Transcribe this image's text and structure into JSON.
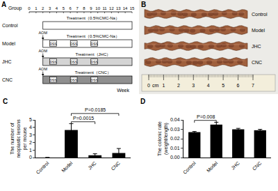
{
  "diagram": {
    "title": "A",
    "header": "Group",
    "axis": {
      "label": "Week",
      "ticks": [
        0,
        1,
        2,
        3,
        4,
        5,
        6,
        7,
        8,
        9,
        10,
        11,
        12,
        13,
        14,
        15
      ]
    },
    "aom_label": "AOM",
    "dss_label": "DSS",
    "rows": [
      {
        "group": "Control",
        "treatment": "Treatment（0.5%CMC-Na）",
        "start": 2,
        "end": 15
      },
      {
        "group": "Model",
        "treatment": "Treatment（0.5%CMC-Na）",
        "start": 2,
        "end": 15,
        "aom_week": 2,
        "dss_weeks": [
          [
            3,
            4
          ],
          [
            6,
            7
          ],
          [
            9,
            10
          ]
        ]
      },
      {
        "group": "JHC",
        "treatment": "Treatment（JHC）",
        "start": 2,
        "end": 15,
        "aom_week": 2,
        "dss_weeks": [
          [
            3,
            4
          ],
          [
            6,
            7
          ],
          [
            9,
            10
          ]
        ]
      },
      {
        "group": "CNC",
        "treatment": "Treatment（CNC）",
        "start": 2,
        "end": 15,
        "aom_week": 2,
        "dss_weeks": [
          [
            3,
            4
          ],
          [
            6,
            7
          ],
          [
            9,
            10
          ]
        ]
      }
    ]
  },
  "photo": {
    "title": "B",
    "labels": [
      "Control",
      "Model",
      "JHC",
      "CNC"
    ],
    "ruler": {
      "unit": "cm",
      "ticks": [
        0,
        1,
        2,
        3,
        4,
        5,
        6,
        7
      ]
    }
  },
  "chart_data": [
    {
      "type": "bar",
      "title": "C",
      "categories": [
        "Control",
        "Model",
        "JHC",
        "CNC"
      ],
      "values": [
        0,
        3.65,
        0.3,
        0.6
      ],
      "errors": [
        0,
        0.85,
        0.2,
        0.6
      ],
      "color": "#000000",
      "y_label": "The number of neoplastic lesions per mouse",
      "ylim": [
        0,
        5
      ],
      "yticks": [
        0,
        1,
        2,
        3,
        4,
        5
      ],
      "annotations": [
        {
          "text": "P=0.0015",
          "from": "Model",
          "to": "JHC"
        },
        {
          "text": "P=0.0185",
          "from": "Model",
          "to": "CNC"
        }
      ]
    },
    {
      "type": "bar",
      "title": "D",
      "categories": [
        "Control",
        "Model",
        "JHC",
        "CNC"
      ],
      "values": [
        0.027,
        0.035,
        0.03,
        0.029
      ],
      "errors": [
        0.0007,
        0.0025,
        0.001,
        0.001
      ],
      "color": "#000000",
      "y_label": "The colonic rate (weight/length)",
      "ylim": [
        0,
        0.04
      ],
      "yticks": [
        {
          "value": 0,
          "label": "0.00"
        },
        0.01,
        0.02,
        0.03,
        0.04
      ],
      "annotations": [
        {
          "text": "P=0.008",
          "from": "Control",
          "to": "Model"
        }
      ]
    }
  ]
}
